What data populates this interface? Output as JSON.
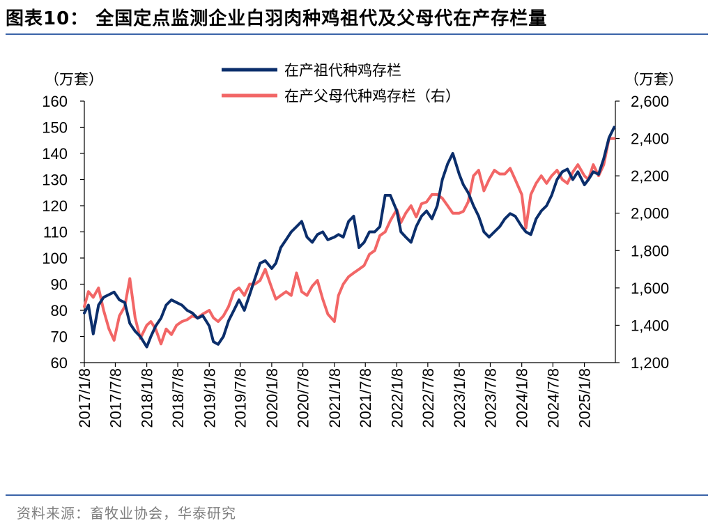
{
  "header": {
    "title": "图表10：  全国定点监测企业白羽肉种鸡祖代及父母代在产存栏量"
  },
  "footer": {
    "source": "资料来源：畜牧业协会，华泰研究"
  },
  "colors": {
    "rule": "#3a63a8",
    "grandparent": "#0b2e6b",
    "parent": "#f26666"
  },
  "chart_data": {
    "type": "line",
    "title": "",
    "left_unit": "（万套）",
    "right_unit": "（万套）",
    "legend_position": "top-center",
    "grid": false,
    "x_tick_labels": [
      "2017/1/8",
      "2017/7/8",
      "2018/1/8",
      "2018/7/8",
      "2019/1/8",
      "2019/7/8",
      "2020/1/8",
      "2020/7/8",
      "2021/1/8",
      "2021/7/8",
      "2022/1/8",
      "2022/7/8",
      "2023/1/8",
      "2023/7/8",
      "2024/1/8",
      "2024/7/8",
      "2025/1/8"
    ],
    "x_range": [
      "2017-01-08",
      "2025-07-08"
    ],
    "left_axis": {
      "range": [
        60,
        160
      ],
      "ticks": [
        60,
        70,
        80,
        90,
        100,
        110,
        120,
        130,
        140,
        150,
        160
      ],
      "tick_labels": [
        "60",
        "70",
        "80",
        "90",
        "100",
        "110",
        "120",
        "130",
        "140",
        "150",
        "160"
      ]
    },
    "right_axis": {
      "range": [
        1200,
        2600
      ],
      "ticks": [
        1200,
        1400,
        1600,
        1800,
        2000,
        2200,
        2400,
        2600
      ],
      "tick_labels": [
        "1,200",
        "1,400",
        "1,600",
        "1,800",
        "2,000",
        "2,200",
        "2,400",
        "2,600"
      ]
    },
    "series": [
      {
        "name": "在产祖代种鸡存栏",
        "axis": "left",
        "color": "#0b2e6b",
        "x": [
          "2017-01-08",
          "2017-02-01",
          "2017-03-01",
          "2017-04-01",
          "2017-05-01",
          "2017-06-01",
          "2017-07-01",
          "2017-08-01",
          "2017-09-01",
          "2017-10-01",
          "2017-11-01",
          "2017-12-01",
          "2018-01-08",
          "2018-02-01",
          "2018-03-01",
          "2018-04-01",
          "2018-05-01",
          "2018-06-01",
          "2018-07-01",
          "2018-08-01",
          "2018-09-01",
          "2018-10-01",
          "2018-11-01",
          "2018-12-01",
          "2019-01-08",
          "2019-02-01",
          "2019-03-01",
          "2019-04-01",
          "2019-05-01",
          "2019-06-01",
          "2019-07-01",
          "2019-08-01",
          "2019-09-01",
          "2019-10-01",
          "2019-11-01",
          "2019-12-01",
          "2020-01-08",
          "2020-02-01",
          "2020-03-01",
          "2020-04-01",
          "2020-05-01",
          "2020-06-01",
          "2020-07-01",
          "2020-08-01",
          "2020-09-01",
          "2020-10-01",
          "2020-11-01",
          "2020-12-01",
          "2021-01-08",
          "2021-02-01",
          "2021-03-01",
          "2021-04-01",
          "2021-05-01",
          "2021-06-01",
          "2021-07-01",
          "2021-08-01",
          "2021-09-01",
          "2021-10-01",
          "2021-11-01",
          "2021-12-01",
          "2022-01-08",
          "2022-02-01",
          "2022-03-01",
          "2022-04-01",
          "2022-05-01",
          "2022-06-01",
          "2022-07-01",
          "2022-08-01",
          "2022-09-01",
          "2022-10-01",
          "2022-11-01",
          "2022-12-01",
          "2023-01-08",
          "2023-02-01",
          "2023-03-01",
          "2023-04-01",
          "2023-05-01",
          "2023-06-01",
          "2023-07-01",
          "2023-08-01",
          "2023-09-01",
          "2023-10-01",
          "2023-11-01",
          "2023-12-01",
          "2024-01-08",
          "2024-02-01",
          "2024-03-01",
          "2024-04-01",
          "2024-05-01",
          "2024-06-01",
          "2024-07-01",
          "2024-08-01",
          "2024-09-01",
          "2024-10-01",
          "2024-11-01",
          "2024-12-01",
          "2025-01-08",
          "2025-02-01",
          "2025-03-01",
          "2025-04-01",
          "2025-05-01",
          "2025-06-01",
          "2025-07-01"
        ],
        "values": [
          79,
          82,
          71,
          82,
          85,
          86,
          87,
          84,
          83,
          75,
          72,
          70,
          66,
          70,
          74,
          77,
          82,
          84,
          83,
          82,
          80,
          79,
          77,
          78,
          74,
          68,
          67,
          70,
          76,
          80,
          84,
          80,
          86,
          92,
          98,
          99,
          96,
          98,
          104,
          107,
          110,
          112,
          114,
          108,
          106,
          109,
          110,
          107,
          108,
          109,
          108,
          114,
          116,
          104,
          106,
          110,
          110,
          112,
          124,
          124,
          118,
          110,
          108,
          106,
          112,
          116,
          118,
          115,
          120,
          130,
          136,
          140,
          132,
          128,
          125,
          120,
          116,
          110,
          108,
          110,
          112,
          115,
          117,
          116,
          112,
          110,
          109,
          115,
          118,
          120,
          124,
          130,
          133,
          134,
          130,
          133,
          128,
          130,
          133,
          132,
          138,
          146,
          150
        ]
      },
      {
        "name": "在产父母代种鸡存栏（右）",
        "axis": "right",
        "color": "#f26666",
        "x": [
          "2017-01-08",
          "2017-02-01",
          "2017-03-01",
          "2017-04-01",
          "2017-05-01",
          "2017-06-01",
          "2017-07-01",
          "2017-08-01",
          "2017-09-01",
          "2017-10-01",
          "2017-11-01",
          "2017-12-01",
          "2018-01-08",
          "2018-02-01",
          "2018-03-01",
          "2018-04-01",
          "2018-05-01",
          "2018-06-01",
          "2018-07-01",
          "2018-08-01",
          "2018-09-01",
          "2018-10-01",
          "2018-11-01",
          "2018-12-01",
          "2019-01-08",
          "2019-02-01",
          "2019-03-01",
          "2019-04-01",
          "2019-05-01",
          "2019-06-01",
          "2019-07-01",
          "2019-08-01",
          "2019-09-01",
          "2019-10-01",
          "2019-11-01",
          "2019-12-01",
          "2020-01-08",
          "2020-02-01",
          "2020-03-01",
          "2020-04-01",
          "2020-05-01",
          "2020-06-01",
          "2020-07-01",
          "2020-08-01",
          "2020-09-01",
          "2020-10-01",
          "2020-11-01",
          "2020-12-01",
          "2021-01-08",
          "2021-02-01",
          "2021-03-01",
          "2021-04-01",
          "2021-05-01",
          "2021-06-01",
          "2021-07-01",
          "2021-08-01",
          "2021-09-01",
          "2021-10-01",
          "2021-11-01",
          "2021-12-01",
          "2022-01-08",
          "2022-02-01",
          "2022-03-01",
          "2022-04-01",
          "2022-05-01",
          "2022-06-01",
          "2022-07-01",
          "2022-08-01",
          "2022-09-01",
          "2022-10-01",
          "2022-11-01",
          "2022-12-01",
          "2023-01-08",
          "2023-02-01",
          "2023-03-01",
          "2023-04-01",
          "2023-05-01",
          "2023-06-01",
          "2023-07-01",
          "2023-08-01",
          "2023-09-01",
          "2023-10-01",
          "2023-11-01",
          "2023-12-01",
          "2024-01-08",
          "2024-02-01",
          "2024-03-01",
          "2024-04-01",
          "2024-05-01",
          "2024-06-01",
          "2024-07-01",
          "2024-08-01",
          "2024-09-01",
          "2024-10-01",
          "2024-11-01",
          "2024-12-01",
          "2025-01-08",
          "2025-02-01",
          "2025-03-01",
          "2025-04-01",
          "2025-05-01",
          "2025-06-01",
          "2025-07-01"
        ],
        "values": [
          1500,
          1580,
          1550,
          1600,
          1480,
          1380,
          1320,
          1450,
          1500,
          1650,
          1440,
          1330,
          1400,
          1420,
          1380,
          1300,
          1380,
          1350,
          1400,
          1420,
          1430,
          1450,
          1440,
          1460,
          1480,
          1440,
          1420,
          1450,
          1500,
          1580,
          1600,
          1560,
          1620,
          1620,
          1640,
          1700,
          1600,
          1540,
          1560,
          1580,
          1560,
          1680,
          1580,
          1560,
          1610,
          1640,
          1540,
          1460,
          1420,
          1560,
          1620,
          1660,
          1680,
          1700,
          1720,
          1780,
          1800,
          1880,
          1900,
          1960,
          2020,
          1950,
          2000,
          2040,
          1980,
          2050,
          2060,
          2100,
          2100,
          2080,
          2040,
          2000,
          2000,
          2010,
          2060,
          2200,
          2230,
          2120,
          2180,
          2230,
          2210,
          2210,
          2240,
          2180,
          2100,
          1920,
          2100,
          2160,
          2200,
          2160,
          2200,
          2230,
          2180,
          2160,
          2220,
          2260,
          2200,
          2180,
          2260,
          2200,
          2260,
          2400,
          2400
        ]
      }
    ]
  }
}
